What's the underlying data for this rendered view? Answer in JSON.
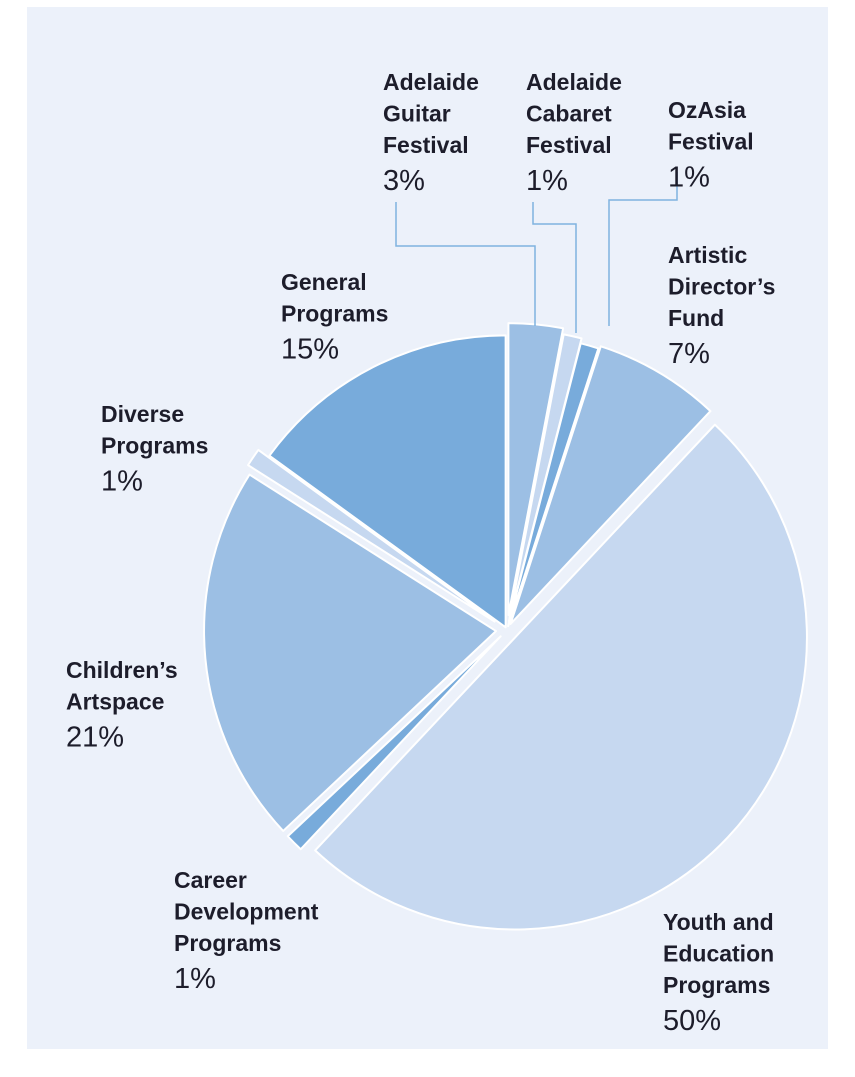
{
  "chart_data": {
    "type": "pie",
    "title": "",
    "slices": [
      {
        "name_lines": [
          "Adelaide",
          "Guitar",
          "Festival"
        ],
        "label": "Adelaide Guitar Festival",
        "value": 3,
        "pct_text": "3%",
        "color": "#9cbfe4"
      },
      {
        "name_lines": [
          "Adelaide",
          "Cabaret",
          "Festival"
        ],
        "label": "Adelaide Cabaret Festival",
        "value": 1,
        "pct_text": "1%",
        "color": "#c6d8f0"
      },
      {
        "name_lines": [
          "OzAsia",
          "Festival"
        ],
        "label": "OzAsia Festival",
        "value": 1,
        "pct_text": "1%",
        "color": "#78abdb"
      },
      {
        "name_lines": [
          "Artistic",
          "Director’s",
          "Fund"
        ],
        "label": "Artistic Director’s Fund",
        "value": 7,
        "pct_text": "7%",
        "color": "#9cbfe4"
      },
      {
        "name_lines": [
          "Youth and",
          "Education",
          "Programs"
        ],
        "label": "Youth and Education Programs",
        "value": 50,
        "pct_text": "50%",
        "color": "#c6d8f0"
      },
      {
        "name_lines": [
          "Career",
          "Development",
          "Programs"
        ],
        "label": "Career Development Programs",
        "value": 1,
        "pct_text": "1%",
        "color": "#78abdb"
      },
      {
        "name_lines": [
          "Children’s",
          "Artspace"
        ],
        "label": "Children’s Artspace",
        "value": 21,
        "pct_text": "21%",
        "color": "#9cbfe4"
      },
      {
        "name_lines": [
          "Diverse",
          "Programs"
        ],
        "label": "Diverse Programs",
        "value": 1,
        "pct_text": "1%",
        "color": "#c6d8f0"
      },
      {
        "name_lines": [
          "General",
          "Programs"
        ],
        "label": "General Programs",
        "value": 15,
        "pct_text": "15%",
        "color": "#78abdb"
      }
    ],
    "start_angle_deg": 0,
    "direction": "clockwise",
    "legend": "none",
    "colors": {
      "background": "#ecf1fa",
      "text": "#1d1d2b",
      "leader_line": "#7fb3e0"
    }
  }
}
